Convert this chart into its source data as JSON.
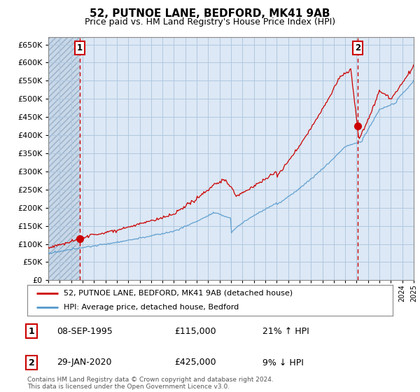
{
  "title": "52, PUTNOE LANE, BEDFORD, MK41 9AB",
  "subtitle": "Price paid vs. HM Land Registry's House Price Index (HPI)",
  "background_color": "#ffffff",
  "plot_bg_color": "#dce8f5",
  "hatch_bg_color": "#c8d8e8",
  "grid_color": "#b0c8e0",
  "line1_color": "#cc0000",
  "line2_color": "#5599cc",
  "marker_color": "#cc0000",
  "dashed_color": "#cc0000",
  "ytick_values": [
    0,
    50000,
    100000,
    150000,
    200000,
    250000,
    300000,
    350000,
    400000,
    450000,
    500000,
    550000,
    600000,
    650000
  ],
  "ylim": [
    0,
    670000
  ],
  "transaction1": {
    "date": "08-SEP-1995",
    "price": 115000,
    "pct": "21%",
    "dir": "↑",
    "label": "1"
  },
  "transaction2": {
    "date": "29-JAN-2020",
    "price": 425000,
    "pct": "9%",
    "dir": "↓",
    "label": "2"
  },
  "legend1_label": "52, PUTNOE LANE, BEDFORD, MK41 9AB (detached house)",
  "legend2_label": "HPI: Average price, detached house, Bedford",
  "footer": "Contains HM Land Registry data © Crown copyright and database right 2024.\nThis data is licensed under the Open Government Licence v3.0.",
  "xstart_year": 1993,
  "xend_year": 2025,
  "sale1_year": 1995.75,
  "sale2_year": 2020.08,
  "title_fontsize": 11,
  "subtitle_fontsize": 9
}
